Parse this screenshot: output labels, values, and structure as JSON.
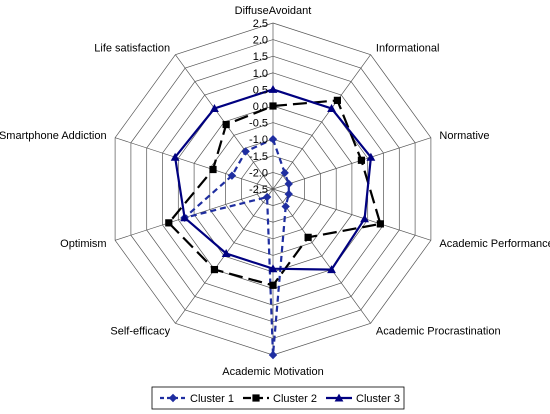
{
  "chart_data": {
    "type": "radar",
    "title": "",
    "axes": [
      "DiffuseAvoidant",
      "Informational",
      "Normative",
      "Academic Performance",
      "Academic Procrastination",
      "Academic Motivation",
      "Self-efficacy",
      "Optimism",
      "Smartphone Addiction",
      "Life satisfaction"
    ],
    "range": [
      -2.5,
      2.5
    ],
    "ticks": [
      "2.5",
      "2.0",
      "1.5",
      "1.0",
      "0.5",
      "0.0",
      "-0.5",
      "-1.0",
      "-1.5",
      "-2.0",
      "-2.5"
    ],
    "tick_values": [
      2.5,
      2.0,
      1.5,
      1.0,
      0.5,
      0.0,
      -0.5,
      -1.0,
      -1.5,
      -2.0,
      -2.5
    ],
    "grid": true,
    "legend_position": "bottom",
    "series": [
      {
        "name": "Cluster 1",
        "color": "#1f2ea0",
        "line_style": "short-dash",
        "marker": "diamond",
        "values": [
          -1.0,
          -1.9,
          -2.0,
          -2.0,
          -1.85,
          2.5,
          -2.2,
          0.3,
          -1.2,
          -1.1
        ]
      },
      {
        "name": "Cluster 2",
        "color": "#000000",
        "line_style": "long-dash",
        "marker": "square",
        "values": [
          0.0,
          0.8,
          0.3,
          0.9,
          -0.7,
          0.4,
          0.5,
          0.8,
          -0.6,
          -0.1
        ]
      },
      {
        "name": "Cluster 3",
        "color": "#000080",
        "line_style": "solid",
        "marker": "triangle",
        "values": [
          0.5,
          0.5,
          0.6,
          0.4,
          0.5,
          -0.1,
          -0.1,
          0.3,
          0.6,
          0.5
        ]
      }
    ]
  }
}
